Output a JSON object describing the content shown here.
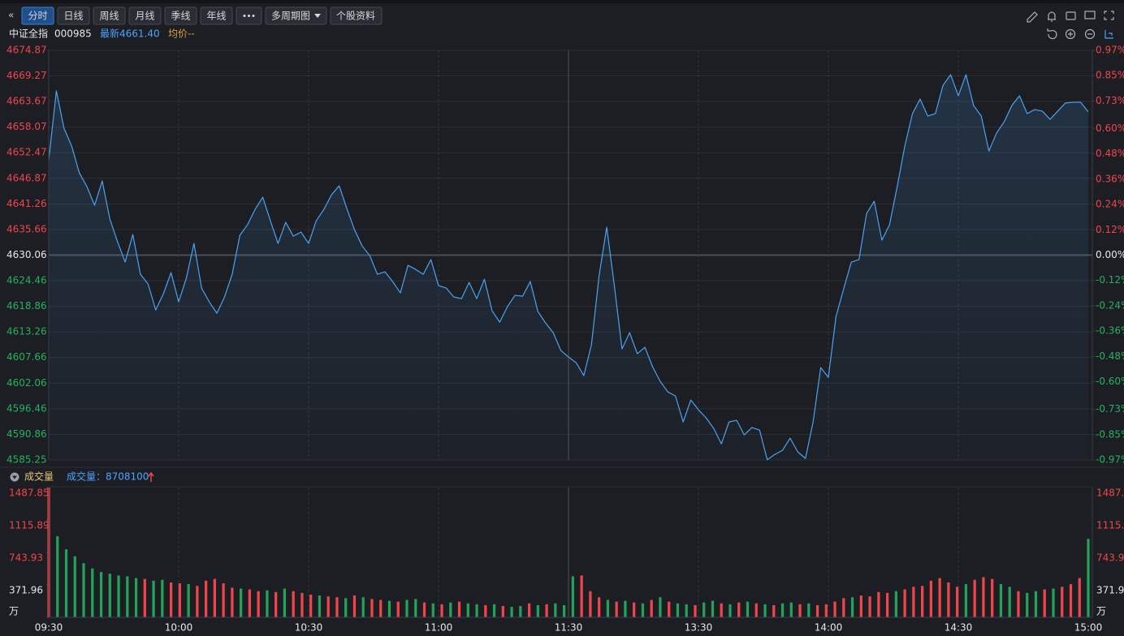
{
  "toolbar": {
    "tabs": [
      "分时",
      "日线",
      "周线",
      "月线",
      "季线",
      "年线"
    ],
    "menu": "多周期图",
    "profile": "个股资料"
  },
  "header": {
    "name": "中证全指",
    "code": "000985",
    "latest": "最新4661.40",
    "avg": "均价--"
  },
  "volume_header": {
    "label": "成交量",
    "total": "成交量：8708100"
  },
  "chart_data": [
    {
      "type": "line",
      "color": "#4aa3f0",
      "grid": true,
      "values": [
        4650.9,
        4665.99,
        4657.82,
        4653.92,
        4648.06,
        4645.04,
        4640.96,
        4646.29,
        4637.94,
        4632.97,
        4628.54,
        4634.57,
        4625.87,
        4623.74,
        4618.06,
        4621.61,
        4626.23,
        4619.84,
        4624.99,
        4632.62,
        4622.86,
        4619.84,
        4617.35,
        4620.9,
        4625.87,
        4634.39,
        4636.7,
        4640.07,
        4642.74,
        4637.59,
        4632.62,
        4637.23,
        4634.22,
        4635.1,
        4632.62,
        4637.59,
        4640.07,
        4643.27,
        4645.22,
        4640.25,
        4635.64,
        4632.09,
        4629.96,
        4625.87,
        4626.41,
        4624.28,
        4621.79,
        4627.83,
        4626.94,
        4625.87,
        4629.07,
        4623.39,
        4622.86,
        4620.9,
        4620.55,
        4624.1,
        4620.55,
        4624.81,
        4617.89,
        4615.4,
        4618.77,
        4621.26,
        4621.08,
        4624.28,
        4617.71,
        4615.22,
        4613.09,
        4609.19,
        4607.77,
        4606.53,
        4603.69,
        4610.43,
        4625.52,
        4636.17,
        4623.39,
        4609.54,
        4613.09,
        4608.48,
        4609.9,
        4605.64,
        4602.44,
        4600.14,
        4599.25,
        4593.57,
        4598.36,
        4596.23,
        4594.46,
        4592.15,
        4588.78,
        4593.57,
        4593.92,
        4590.73,
        4592.33,
        4591.79,
        4585.3,
        4586.47,
        4587.36,
        4590.02,
        4587.0,
        4585.58,
        4593.57,
        4605.46,
        4603.33,
        4616.64,
        4622.68,
        4628.54,
        4629.07,
        4639.19,
        4641.85,
        4633.33,
        4636.7,
        4645.04,
        4653.92,
        4661.02,
        4664.21,
        4660.49,
        4661.02,
        4667.23,
        4669.54,
        4664.92,
        4669.54,
        4662.79,
        4660.49,
        4652.85,
        4656.76,
        4659.24,
        4662.79,
        4664.92,
        4661.02,
        4661.91,
        4661.55,
        4659.78,
        4661.55,
        4663.33,
        4663.5,
        4663.5,
        4661.4
      ],
      "ylim": [
        4585.25,
        4674.87
      ],
      "yticks": [
        4674.87,
        4669.27,
        4663.67,
        4658.07,
        4652.47,
        4646.87,
        4641.26,
        4635.66,
        4630.06,
        4624.46,
        4618.86,
        4613.26,
        4607.66,
        4602.06,
        4596.46,
        4590.86,
        4585.25
      ],
      "y2lim": [
        -0.97,
        0.97
      ],
      "y2ticks": [
        {
          "value": 0.97,
          "label": "0.97%"
        },
        {
          "value": 0.85,
          "label": "0.85%"
        },
        {
          "value": 0.73,
          "label": "0.73%"
        },
        {
          "value": 0.6,
          "label": "0.60%"
        },
        {
          "value": 0.48,
          "label": "0.48%"
        },
        {
          "value": 0.36,
          "label": "0.36%"
        },
        {
          "value": 0.24,
          "label": "0.24%"
        },
        {
          "value": 0.12,
          "label": "0.12%"
        },
        {
          "value": 0,
          "label": "0.00%"
        },
        {
          "value": -0.12,
          "label": "-0.12%"
        },
        {
          "value": -0.24,
          "label": "-0.24%"
        },
        {
          "value": -0.36,
          "label": "-0.36%"
        },
        {
          "value": -0.48,
          "label": "-0.48%"
        },
        {
          "value": -0.6,
          "label": "-0.60%"
        },
        {
          "value": -0.73,
          "label": "-0.73%"
        },
        {
          "value": -0.85,
          "label": "-0.85%"
        },
        {
          "value": -0.97,
          "label": "-0.97%"
        }
      ]
    },
    {
      "type": "bar",
      "up_color": "#f0464a",
      "down_color": "#23a35a",
      "x_labels": [
        "09:30",
        "10:00",
        "10:30",
        "11:00",
        "11:30",
        "13:30",
        "14:00",
        "14:30",
        "15:00"
      ],
      "values": [
        1487.85,
        930,
        780,
        700,
        620,
        560,
        520,
        500,
        480,
        470,
        450,
        440,
        420,
        430,
        400,
        390,
        380,
        360,
        420,
        440,
        390,
        340,
        330,
        320,
        300,
        310,
        290,
        330,
        300,
        280,
        260,
        250,
        240,
        230,
        220,
        250,
        230,
        210,
        200,
        190,
        180,
        200,
        210,
        170,
        160,
        150,
        170,
        180,
        160,
        150,
        140,
        150,
        130,
        120,
        130,
        160,
        140,
        150,
        160,
        140,
        470,
        480,
        300,
        230,
        200,
        180,
        190,
        170,
        160,
        200,
        230,
        180,
        160,
        150,
        140,
        170,
        190,
        160,
        150,
        170,
        180,
        160,
        150,
        140,
        160,
        170,
        150,
        160,
        140,
        150,
        180,
        220,
        230,
        250,
        240,
        290,
        280,
        300,
        320,
        350,
        360,
        420,
        450,
        400,
        350,
        380,
        430,
        460,
        440,
        380,
        350,
        300,
        280,
        300,
        320,
        330,
        350,
        380,
        450,
        900
      ],
      "rising": [
        true,
        false,
        false,
        false,
        false,
        false,
        false,
        false,
        false,
        false,
        false,
        true,
        false,
        false,
        true,
        true,
        false,
        true,
        true,
        true,
        true,
        true,
        false,
        true,
        true,
        false,
        true,
        false,
        true,
        true,
        true,
        false,
        true,
        true,
        false,
        true,
        false,
        true,
        true,
        false,
        true,
        false,
        false,
        true,
        false,
        true,
        false,
        true,
        false,
        false,
        true,
        false,
        true,
        false,
        false,
        true,
        false,
        true,
        false,
        false,
        false,
        true,
        true,
        true,
        false,
        true,
        false,
        true,
        false,
        true,
        false,
        true,
        false,
        false,
        true,
        false,
        false,
        true,
        false,
        true,
        false,
        true,
        false,
        true,
        false,
        false,
        true,
        false,
        true,
        true,
        true,
        true,
        false,
        true,
        true,
        true,
        true,
        false,
        true,
        true,
        true,
        true,
        true,
        true,
        true,
        false,
        true,
        true,
        true,
        false,
        false,
        true,
        false,
        false,
        true,
        false,
        true,
        true,
        true,
        false
      ],
      "ylim": [
        0,
        1487.85
      ],
      "yticks": [
        1487.85,
        1115.89,
        743.93,
        371.96,
        {
          "value": 0,
          "label": "万"
        }
      ]
    }
  ]
}
